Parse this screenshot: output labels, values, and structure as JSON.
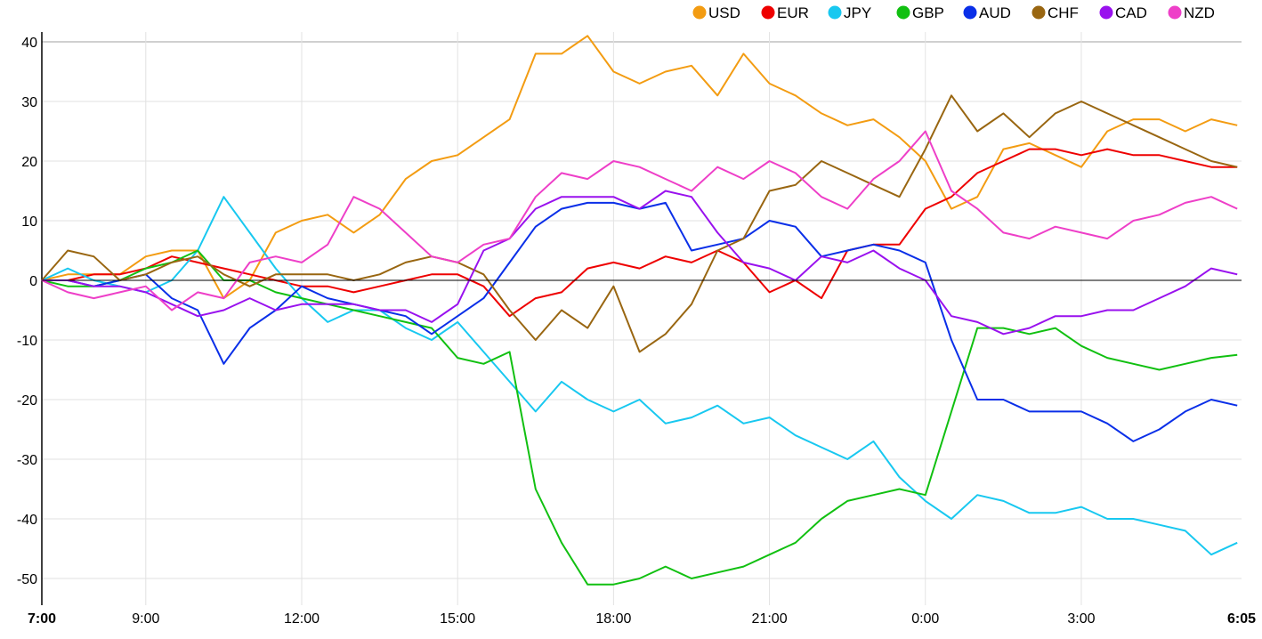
{
  "chart_data": {
    "type": "line",
    "title": "",
    "xlabel": "",
    "ylabel": "",
    "x_unit": "hours since 7:00",
    "xlim": [
      0,
      23.083
    ],
    "ylim": [
      -52,
      42
    ],
    "grid": true,
    "legend_position": "top-right",
    "y_ticks": [
      -50,
      -40,
      -30,
      -20,
      -10,
      0,
      10,
      20,
      30,
      40
    ],
    "x_ticks": [
      {
        "h": 0,
        "label": "7:00",
        "bold": true
      },
      {
        "h": 2,
        "label": "9:00"
      },
      {
        "h": 5,
        "label": "12:00"
      },
      {
        "h": 8,
        "label": "15:00"
      },
      {
        "h": 11,
        "label": "18:00"
      },
      {
        "h": 14,
        "label": "21:00"
      },
      {
        "h": 17,
        "label": "0:00"
      },
      {
        "h": 20,
        "label": "3:00"
      },
      {
        "h": 23.083,
        "label": "6:05",
        "bold": true
      }
    ],
    "x": [
      0,
      0.5,
      1,
      1.5,
      2,
      2.5,
      3,
      3.5,
      4,
      4.5,
      5,
      5.5,
      6,
      6.5,
      7,
      7.5,
      8,
      8.5,
      9,
      9.5,
      10,
      10.5,
      11,
      11.5,
      12,
      12.5,
      13,
      13.5,
      14,
      14.5,
      15,
      15.5,
      16,
      16.5,
      17,
      17.5,
      18,
      18.5,
      19,
      19.5,
      20,
      20.5,
      21,
      21.5,
      22,
      22.5,
      23
    ],
    "series": [
      {
        "name": "USD",
        "color": "#f39c12",
        "values": [
          0,
          1,
          1,
          1,
          4,
          5,
          5,
          -3,
          0,
          8,
          10,
          11,
          8,
          11,
          17,
          20,
          21,
          24,
          27,
          38,
          38,
          41,
          35,
          33,
          35,
          36,
          31,
          38,
          33,
          31,
          28,
          26,
          27,
          24,
          20,
          12,
          14,
          22,
          23,
          21,
          19,
          25,
          27,
          27,
          25,
          27,
          26
        ]
      },
      {
        "name": "EUR",
        "color": "#ee0000",
        "values": [
          0,
          0,
          1,
          1,
          2,
          4,
          3,
          2,
          1,
          0,
          -1,
          -1,
          -2,
          -1,
          0,
          1,
          1,
          -1,
          -6,
          -3,
          -2,
          2,
          3,
          2,
          4,
          3,
          5,
          3,
          -2,
          0,
          -3,
          5,
          6,
          6,
          12,
          14,
          18,
          20,
          22,
          22,
          21,
          22,
          21,
          21,
          20,
          19,
          19
        ]
      },
      {
        "name": "JPY",
        "color": "#18c8f0",
        "values": [
          0,
          2,
          0,
          -1,
          -2,
          0,
          5,
          14,
          8,
          2,
          -3,
          -7,
          -5,
          -5,
          -8,
          -10,
          -7,
          -12,
          -17,
          -22,
          -17,
          -20,
          -22,
          -20,
          -24,
          -23,
          -21,
          -24,
          -23,
          -26,
          -28,
          -30,
          -27,
          -33,
          -37,
          -40,
          -36,
          -37,
          -39,
          -39,
          -38,
          -40,
          -40,
          -41,
          -42,
          -46,
          -44
        ]
      },
      {
        "name": "GBP",
        "color": "#11c011",
        "values": [
          0,
          -1,
          -1,
          0,
          2,
          3,
          5,
          0,
          0,
          -2,
          -3,
          -4,
          -5,
          -6,
          -7,
          -8,
          -13,
          -14,
          -12,
          -35,
          -44,
          -51,
          -51,
          -50,
          -48,
          -50,
          -49,
          -48,
          -46,
          -44,
          -40,
          -37,
          -36,
          -35,
          -36,
          -22,
          -8,
          -8,
          -9,
          -8,
          -11,
          -13,
          -14,
          -15,
          -14,
          -13,
          -12.5
        ]
      },
      {
        "name": "AUD",
        "color": "#0a2fe8",
        "values": [
          0,
          0,
          -1,
          0,
          1,
          -3,
          -5,
          -14,
          -8,
          -5,
          -1,
          -3,
          -4,
          -5,
          -6,
          -9,
          -6,
          -3,
          3,
          9,
          12,
          13,
          13,
          12,
          13,
          5,
          6,
          7,
          10,
          9,
          4,
          5,
          6,
          5,
          3,
          -10,
          -20,
          -20,
          -22,
          -22,
          -22,
          -24,
          -27,
          -25,
          -22,
          -20,
          -21
        ]
      },
      {
        "name": "CHF",
        "color": "#996611",
        "values": [
          0,
          5,
          4,
          0,
          1,
          3,
          4,
          1,
          -1,
          1,
          1,
          1,
          0,
          1,
          3,
          4,
          3,
          1,
          -5,
          -10,
          -5,
          -8,
          -1,
          -12,
          -9,
          -4,
          5,
          7,
          15,
          16,
          20,
          18,
          16,
          14,
          22,
          31,
          25,
          28,
          24,
          28,
          30,
          28,
          26,
          24,
          22,
          20,
          19
        ]
      },
      {
        "name": "CAD",
        "color": "#9911ee",
        "values": [
          0,
          0,
          -1,
          -1,
          -2,
          -4,
          -6,
          -5,
          -3,
          -5,
          -4,
          -4,
          -4,
          -5,
          -5,
          -7,
          -4,
          5,
          7,
          12,
          14,
          14,
          14,
          12,
          15,
          14,
          8,
          3,
          2,
          0,
          4,
          3,
          5,
          2,
          0,
          -6,
          -7,
          -9,
          -8,
          -6,
          -6,
          -5,
          -5,
          -3,
          -1,
          2,
          1
        ]
      },
      {
        "name": "NZD",
        "color": "#ee3fc8",
        "values": [
          0,
          -2,
          -3,
          -2,
          -1,
          -5,
          -2,
          -3,
          3,
          4,
          3,
          6,
          14,
          12,
          8,
          4,
          3,
          6,
          7,
          14,
          18,
          17,
          20,
          19,
          17,
          15,
          19,
          17,
          20,
          18,
          14,
          12,
          17,
          20,
          25,
          15,
          12,
          8,
          7,
          9,
          8,
          7,
          10,
          11,
          13,
          14,
          12
        ]
      }
    ]
  }
}
